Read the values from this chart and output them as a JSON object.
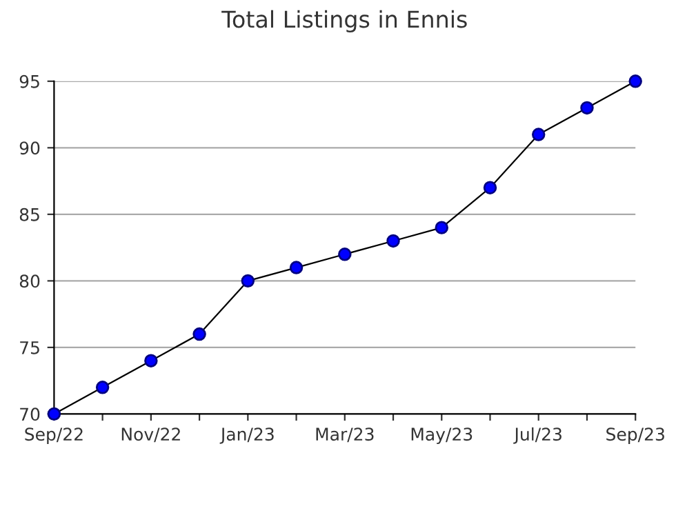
{
  "chart_data": {
    "type": "line",
    "title": "Total Listings in Ennis",
    "categories": [
      "Sep/22",
      null,
      "Nov/22",
      null,
      "Jan/23",
      null,
      "Mar/23",
      null,
      "May/23",
      null,
      "Jul/23",
      null,
      "Sep/23"
    ],
    "series": [
      {
        "color": "#0000ff",
        "values": [
          70,
          72,
          74,
          76,
          80,
          81,
          82,
          83,
          84,
          87,
          91,
          93,
          95
        ]
      }
    ],
    "ylim": [
      70,
      95
    ],
    "yticks": [
      70,
      75,
      80,
      85,
      90,
      95
    ],
    "grid": "y",
    "marker": "circle",
    "line_style": "solid",
    "legend": false
  }
}
